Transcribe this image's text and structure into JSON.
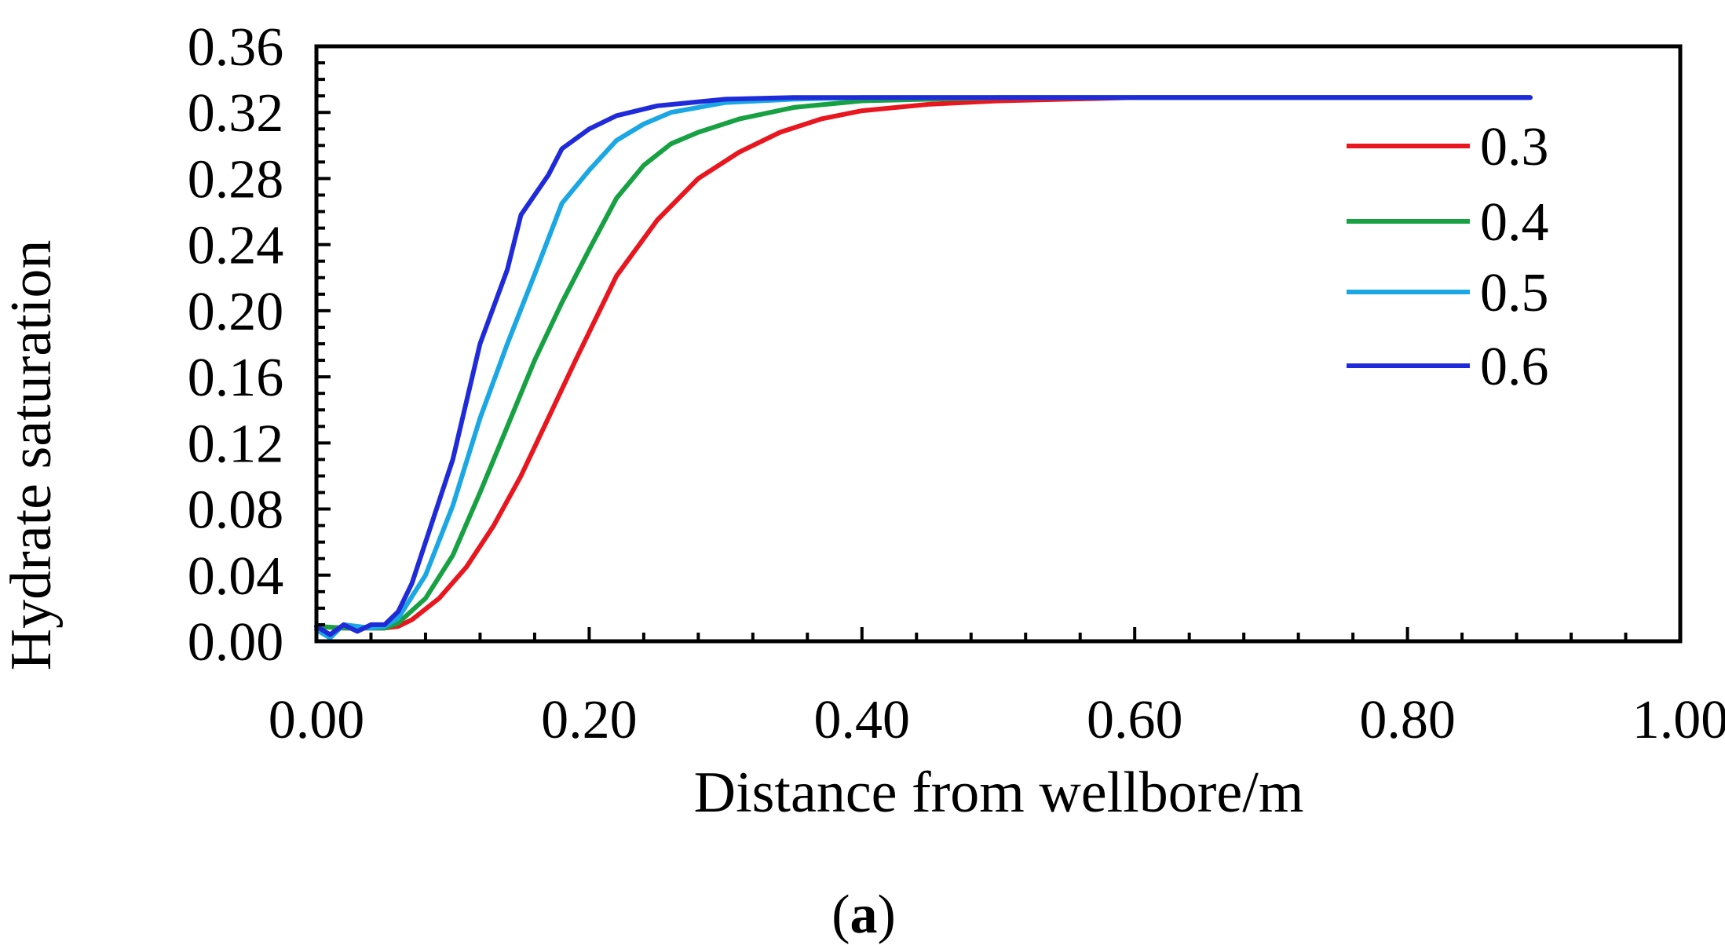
{
  "chart_data": {
    "type": "line",
    "title": "",
    "xlabel": "Distance from wellbore/m",
    "ylabel": "Hydrate saturation",
    "xlim": [
      0,
      1.0
    ],
    "ylim": [
      0,
      0.36
    ],
    "x_ticks": [
      "0.00",
      "0.20",
      "0.40",
      "0.60",
      "0.80",
      "1.00"
    ],
    "y_ticks": [
      "0.00",
      "0.04",
      "0.08",
      "0.12",
      "0.16",
      "0.20",
      "0.24",
      "0.28",
      "0.32",
      "0.36"
    ],
    "legend_position": "right",
    "panel_label": {
      "open": "(",
      "letter": "a",
      "close": ")"
    },
    "series": [
      {
        "name": "0.3",
        "color": "#e8161e",
        "points": [
          [
            0.0,
            0.009
          ],
          [
            0.02,
            0.008
          ],
          [
            0.05,
            0.008
          ],
          [
            0.06,
            0.009
          ],
          [
            0.07,
            0.013
          ],
          [
            0.09,
            0.026
          ],
          [
            0.11,
            0.045
          ],
          [
            0.13,
            0.07
          ],
          [
            0.15,
            0.1
          ],
          [
            0.17,
            0.135
          ],
          [
            0.19,
            0.17
          ],
          [
            0.22,
            0.221
          ],
          [
            0.25,
            0.255
          ],
          [
            0.28,
            0.28
          ],
          [
            0.31,
            0.296
          ],
          [
            0.34,
            0.308
          ],
          [
            0.37,
            0.316
          ],
          [
            0.4,
            0.321
          ],
          [
            0.45,
            0.325
          ],
          [
            0.5,
            0.327
          ],
          [
            0.55,
            0.328
          ],
          [
            0.6,
            0.329
          ],
          [
            0.89,
            0.329
          ]
        ]
      },
      {
        "name": "0.4",
        "color": "#17a143",
        "points": [
          [
            0.0,
            0.009
          ],
          [
            0.02,
            0.008
          ],
          [
            0.05,
            0.008
          ],
          [
            0.06,
            0.011
          ],
          [
            0.08,
            0.026
          ],
          [
            0.1,
            0.052
          ],
          [
            0.12,
            0.09
          ],
          [
            0.14,
            0.13
          ],
          [
            0.16,
            0.17
          ],
          [
            0.18,
            0.205
          ],
          [
            0.2,
            0.237
          ],
          [
            0.22,
            0.268
          ],
          [
            0.24,
            0.288
          ],
          [
            0.26,
            0.301
          ],
          [
            0.28,
            0.308
          ],
          [
            0.31,
            0.316
          ],
          [
            0.35,
            0.323
          ],
          [
            0.4,
            0.327
          ],
          [
            0.45,
            0.328
          ],
          [
            0.5,
            0.329
          ],
          [
            0.89,
            0.329
          ]
        ]
      },
      {
        "name": "0.5",
        "color": "#1aa7e3",
        "points": [
          [
            0.0,
            0.007
          ],
          [
            0.01,
            0.002
          ],
          [
            0.02,
            0.01
          ],
          [
            0.04,
            0.008
          ],
          [
            0.05,
            0.009
          ],
          [
            0.06,
            0.014
          ],
          [
            0.08,
            0.04
          ],
          [
            0.1,
            0.082
          ],
          [
            0.12,
            0.135
          ],
          [
            0.14,
            0.18
          ],
          [
            0.16,
            0.222
          ],
          [
            0.18,
            0.265
          ],
          [
            0.2,
            0.285
          ],
          [
            0.22,
            0.303
          ],
          [
            0.24,
            0.313
          ],
          [
            0.26,
            0.32
          ],
          [
            0.3,
            0.326
          ],
          [
            0.35,
            0.328
          ],
          [
            0.4,
            0.329
          ],
          [
            0.89,
            0.329
          ]
        ]
      },
      {
        "name": "0.6",
        "color": "#1f2ad9",
        "points": [
          [
            0.0,
            0.009
          ],
          [
            0.01,
            0.004
          ],
          [
            0.02,
            0.01
          ],
          [
            0.03,
            0.006
          ],
          [
            0.04,
            0.01
          ],
          [
            0.05,
            0.01
          ],
          [
            0.06,
            0.018
          ],
          [
            0.07,
            0.035
          ],
          [
            0.08,
            0.06
          ],
          [
            0.1,
            0.11
          ],
          [
            0.12,
            0.18
          ],
          [
            0.14,
            0.225
          ],
          [
            0.15,
            0.258
          ],
          [
            0.17,
            0.282
          ],
          [
            0.18,
            0.298
          ],
          [
            0.2,
            0.31
          ],
          [
            0.22,
            0.318
          ],
          [
            0.25,
            0.324
          ],
          [
            0.3,
            0.328
          ],
          [
            0.35,
            0.329
          ],
          [
            0.89,
            0.329
          ]
        ]
      }
    ]
  }
}
